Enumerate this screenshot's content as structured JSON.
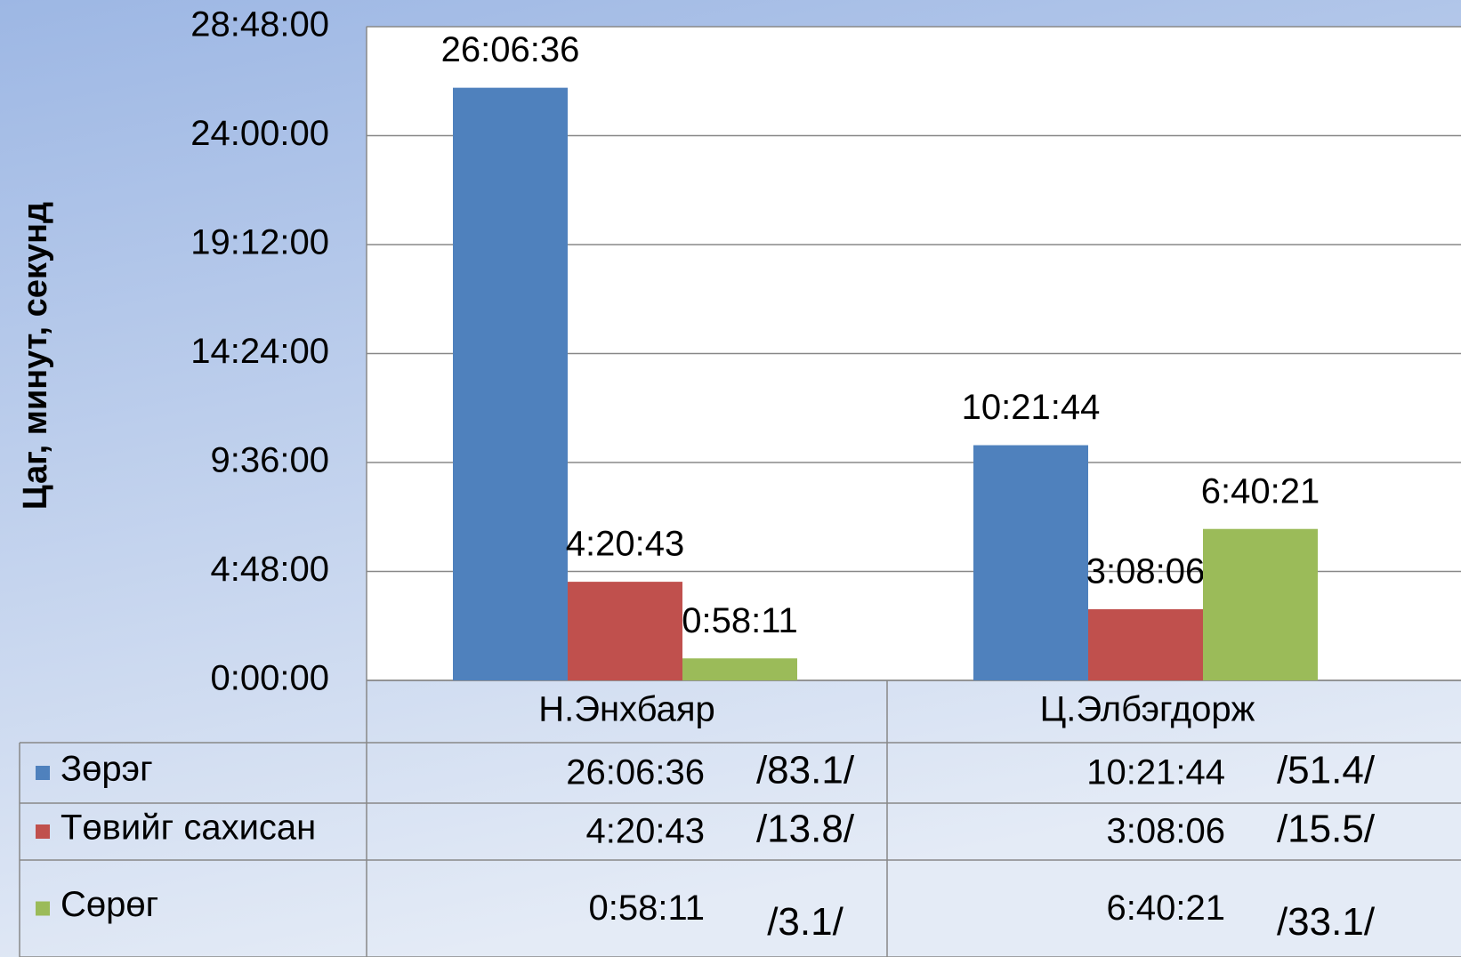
{
  "chart_data": {
    "type": "bar",
    "y_label": "Цаг, минут, секунд",
    "categories": [
      "Н.Энхбаяр",
      "Ц.Элбэгдорж"
    ],
    "series": [
      {
        "name": "Зөрэг",
        "color": "#4f81bd",
        "values": [
          26.11,
          10.362222
        ],
        "value_labels": [
          "26:06:36",
          "10:21:44"
        ],
        "share_labels": [
          "/83.1/",
          "/51.4/"
        ]
      },
      {
        "name": "Төвийг сахисан",
        "color": "#c0504d",
        "values": [
          4.345278,
          3.135
        ],
        "value_labels": [
          "4:20:43",
          "3:08:06"
        ],
        "share_labels": [
          "/13.8/",
          "/15.5/"
        ]
      },
      {
        "name": "Сөрөг",
        "color": "#9bbb59",
        "values": [
          0.969722,
          6.6725
        ],
        "value_labels": [
          "0:58:11",
          "6:40:21"
        ],
        "share_labels": [
          "/3.1/",
          "/33.1/"
        ]
      }
    ],
    "ylim": [
      0,
      28.8
    ],
    "yticks": [
      {
        "value": 0,
        "label": "0:00:00"
      },
      {
        "value": 4.8,
        "label": "4:48:00"
      },
      {
        "value": 9.6,
        "label": "9:36:00"
      },
      {
        "value": 14.4,
        "label": "14:24:00"
      },
      {
        "value": 19.2,
        "label": "19:12:00"
      },
      {
        "value": 24,
        "label": "24:00:00"
      },
      {
        "value": 28.8,
        "label": "28:48:00"
      }
    ],
    "grid": true
  }
}
